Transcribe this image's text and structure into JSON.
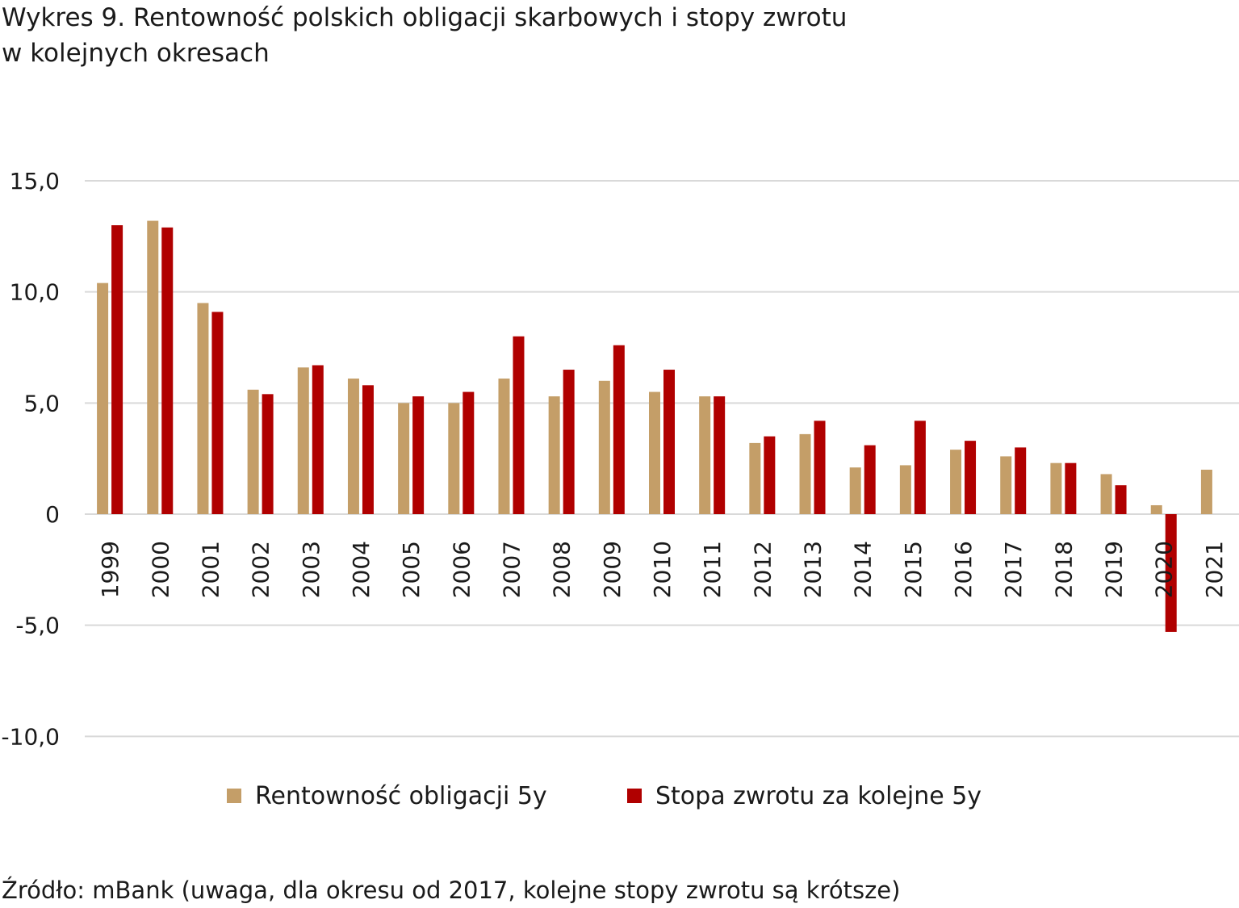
{
  "title_line1": "Wykres 9. Rentowność polskich obligacji skarbowych i stopy zwrotu",
  "title_line2": "w kolejnych okresach",
  "source": "Źródło: mBank (uwaga, dla okresu od 2017, kolejne stopy zwrotu są krótsze)",
  "colors": {
    "series1": "#C49E68",
    "series2": "#B00000",
    "grid": "#D9D9D9"
  },
  "chart_data": {
    "type": "bar",
    "title": "Wykres 9. Rentowność polskich obligacji skarbowych i stopy zwrotu w kolejnych okresach",
    "xlabel": "",
    "ylabel": "",
    "ylim": [
      -10,
      15
    ],
    "yticks": [
      15,
      10,
      5,
      0,
      -5,
      -10
    ],
    "ytick_labels": [
      "15,0",
      "10,0",
      "5,0",
      "0",
      "-5,0",
      "-10,0"
    ],
    "grid": true,
    "legend_position": "bottom",
    "categories": [
      "1999",
      "2000",
      "2001",
      "2002",
      "2003",
      "2004",
      "2005",
      "2006",
      "2007",
      "2008",
      "2009",
      "2010",
      "2011",
      "2012",
      "2013",
      "2014",
      "2015",
      "2016",
      "2017",
      "2018",
      "2019",
      "2020",
      "2021"
    ],
    "series": [
      {
        "name": "Rentowność obligacji 5y",
        "values": [
          10.4,
          13.2,
          9.5,
          5.6,
          6.6,
          6.1,
          5.0,
          5.0,
          6.1,
          5.3,
          6.0,
          5.5,
          5.3,
          3.2,
          3.6,
          2.1,
          2.2,
          2.9,
          2.6,
          2.3,
          1.8,
          0.4,
          2.0
        ]
      },
      {
        "name": "Stopa zwrotu za kolejne 5y",
        "values": [
          13.0,
          12.9,
          9.1,
          5.4,
          6.7,
          5.8,
          5.3,
          5.5,
          8.0,
          6.5,
          7.6,
          6.5,
          5.3,
          3.5,
          4.2,
          3.1,
          4.2,
          3.3,
          3.0,
          2.3,
          1.3,
          -5.3,
          null
        ]
      }
    ]
  }
}
